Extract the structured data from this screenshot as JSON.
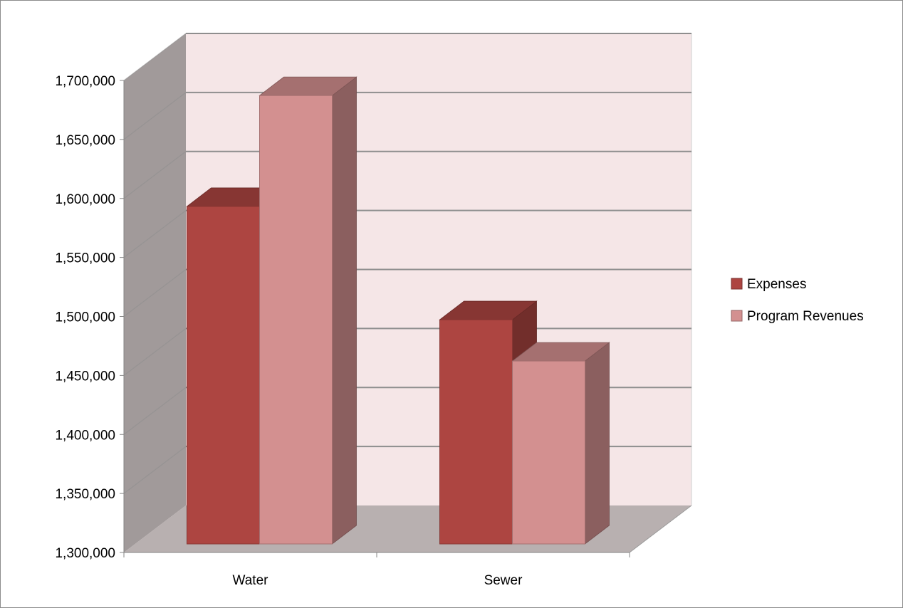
{
  "chart_data": {
    "type": "bar",
    "title": "",
    "xlabel": "",
    "ylabel": "",
    "categories": [
      "Water",
      "Sewer"
    ],
    "series": [
      {
        "name": "Expenses",
        "values": [
          1586000,
          1490000
        ],
        "color": "#ad4541"
      },
      {
        "name": "Program Revenues",
        "values": [
          1680000,
          1455000
        ],
        "color": "#d39090"
      }
    ],
    "ylim": [
      1300000,
      1700000
    ],
    "y_ticks": [
      "1,300,000",
      "1,350,000",
      "1,400,000",
      "1,450,000",
      "1,500,000",
      "1,550,000",
      "1,600,000",
      "1,650,000",
      "1,700,000"
    ],
    "grid": true,
    "legend_position": "right",
    "style": "3d-clustered-column",
    "colors": {
      "back_wall": "#f5e6e7",
      "side_wall": "#a19a9a",
      "floor": "#b8b0b0",
      "gridline": "#8e8e8e"
    }
  }
}
